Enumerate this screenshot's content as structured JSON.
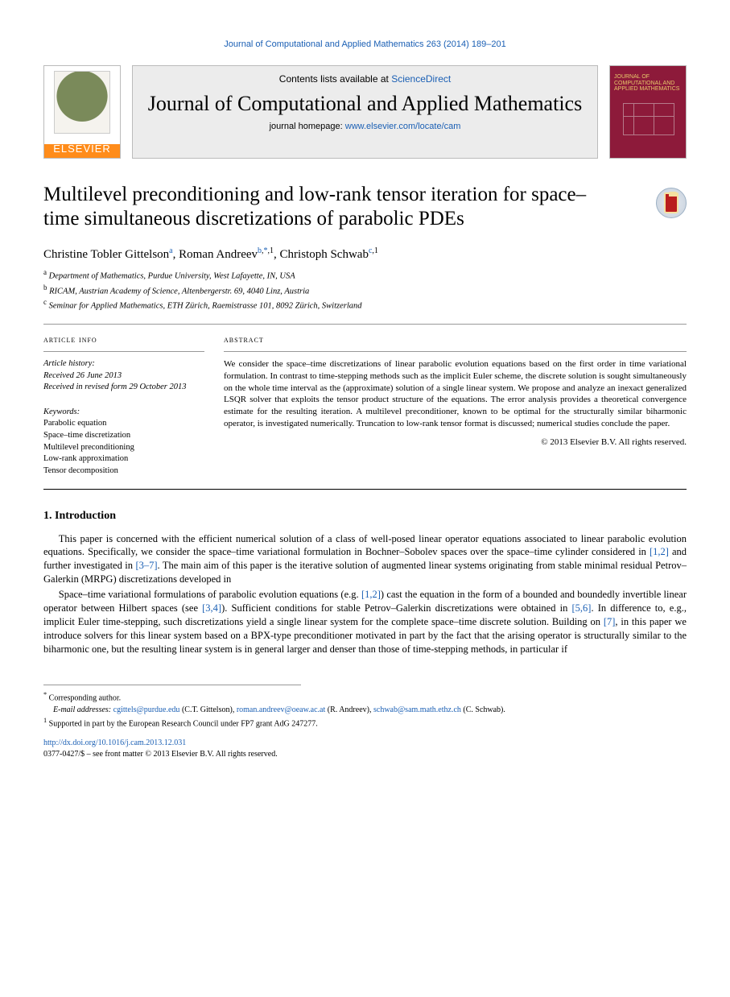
{
  "running_header": "Journal of Computational and Applied Mathematics 263 (2014) 189–201",
  "masthead": {
    "contents_prefix": "Contents lists available at ",
    "contents_link": "ScienceDirect",
    "journal_name": "Journal of Computational and Applied Mathematics",
    "homepage_prefix": "journal homepage: ",
    "homepage_url": "www.elsevier.com/locate/cam",
    "elsevier_label": "ELSEVIER",
    "cover_title": "JOURNAL OF COMPUTATIONAL AND APPLIED MATHEMATICS"
  },
  "title": "Multilevel preconditioning and low-rank tensor iteration for space–time simultaneous discretizations of parabolic PDEs",
  "authors": [
    {
      "name": "Christine Tobler Gittelson",
      "aff": "a",
      "corr": false
    },
    {
      "name": "Roman Andreev",
      "aff": "b",
      "corr": true
    },
    {
      "name": "Christoph Schwab",
      "aff": "c",
      "corr": false
    }
  ],
  "corr_marker": "*",
  "affiliations": [
    {
      "letter": "a",
      "text": "Department of Mathematics, Purdue University, West Lafayette, IN, USA"
    },
    {
      "letter": "b",
      "text": "RICAM, Austrian Academy of Science, Altenbergerstr. 69, 4040 Linz, Austria"
    },
    {
      "letter": "c",
      "text": "Seminar for Applied Mathematics, ETH Zürich, Raemistrasse 101, 8092 Zürich, Switzerland"
    }
  ],
  "article_info_label": "article info",
  "history": [
    "Article history:",
    "Received 26 June 2013",
    "Received in revised form 29 October 2013"
  ],
  "keywords_label": "Keywords:",
  "keywords": [
    "Parabolic equation",
    "Space–time discretization",
    "Multilevel preconditioning",
    "Low-rank approximation",
    "Tensor decomposition"
  ],
  "abstract_label": "abstract",
  "abstract": "We consider the space–time discretizations of linear parabolic evolution equations based on the first order in time variational formulation. In contrast to time-stepping methods such as the implicit Euler scheme, the discrete solution is sought simultaneously on the whole time interval as the (approximate) solution of a single linear system. We propose and analyze an inexact generalized LSQR solver that exploits the tensor product structure of the equations. The error analysis provides a theoretical convergence estimate for the resulting iteration. A multilevel preconditioner, known to be optimal for the structurally similar biharmonic operator, is investigated numerically. Truncation to low-rank tensor format is discussed; numerical studies conclude the paper.",
  "copyright": "© 2013 Elsevier B.V. All rights reserved.",
  "section": {
    "number": "1.",
    "title": "Introduction"
  },
  "body_paragraphs": [
    {
      "text": "This paper is concerned with the efficient numerical solution of a class of well-posed linear operator equations associated to linear parabolic evolution equations. Specifically, we consider the space–time variational formulation in Bochner–Sobolev spaces over the space–time cylinder considered in ",
      "refs": "[1,2]",
      "text2": " and further investigated in ",
      "refs2": "[3–7]",
      "text3": ". The main aim of this paper is the iterative solution of augmented linear systems originating from stable minimal residual Petrov–Galerkin (MRPG) discretizations developed in ",
      "refs3": null
    },
    {
      "text": "Space–time variational formulations of parabolic evolution equations (e.g. ",
      "refs": "[1,2]",
      "text2": ") cast the equation in the form of a bounded and boundedly invertible linear operator between Hilbert spaces (see ",
      "refs2": "[3,4]",
      "text3": "). Sufficient conditions for stable Petrov–Galerkin discretizations were obtained in ",
      "refs3": "[5,6]",
      "text4": ". In difference to, e.g., implicit Euler time-stepping, such discretizations yield a single linear system for the complete space–time discrete solution. Building on ",
      "refs4": "[7]",
      "text5": ", in this paper we introduce solvers for this linear system based on a BPX-type preconditioner motivated in part by the fact that the arising operator is structurally similar to the biharmonic one, but the resulting linear system is in general larger and denser than those of time-stepping methods, in particular if",
      "refs5": null
    }
  ],
  "footnotes": {
    "corr_label": "Corresponding author.",
    "emails_label": "E-mail addresses:",
    "emails": [
      {
        "addr": "cgittels@purdue.edu",
        "who": "(C.T. Gittelson)"
      },
      {
        "addr": "roman.andreev@oeaw.ac.at",
        "who": "(R. Andreev)"
      },
      {
        "addr": "schwab@sam.math.ethz.ch",
        "who": "(C. Schwab)"
      }
    ],
    "note1_marker": "1",
    "note1": "Supported in part by the European Research Council under FP7 grant AdG 247277."
  },
  "doi": "http://dx.doi.org/10.1016/j.cam.2013.12.031",
  "bottom_copyright": "0377-0427/$ – see front matter © 2013 Elsevier B.V. All rights reserved."
}
